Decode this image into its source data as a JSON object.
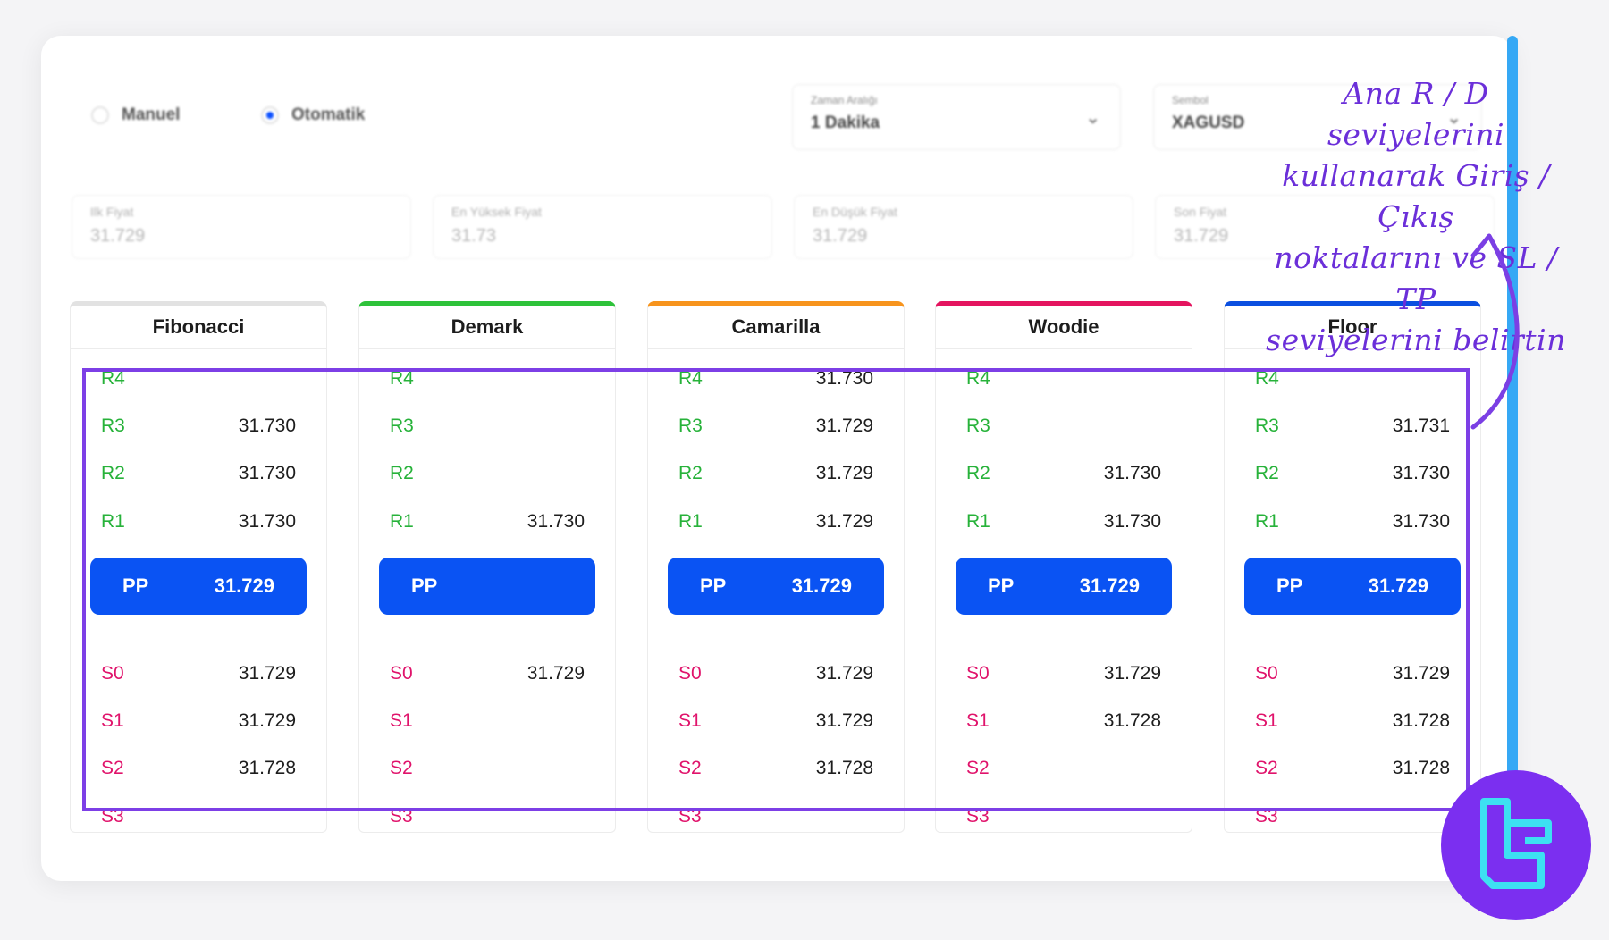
{
  "mode": {
    "manual_label": "Manuel",
    "auto_label": "Otomatik",
    "selected": "Otomatik"
  },
  "timeframe": {
    "label": "Zaman Aralığı",
    "value": "1 Dakika"
  },
  "symbol": {
    "label": "Sembol",
    "value": "XAGUSD"
  },
  "prices": [
    {
      "label": "Ilk Fiyat",
      "value": "31.729"
    },
    {
      "label": "En Yüksek Fiyat",
      "value": "31.73"
    },
    {
      "label": "En Düşük Fiyat",
      "value": "31.729"
    },
    {
      "label": "Son Fiyat",
      "value": "31.729"
    }
  ],
  "columns": [
    {
      "title": "Fibonacci",
      "accent": "#e2e2e2",
      "levels": {
        "R4": "",
        "R3": "31.730",
        "R2": "31.730",
        "R1": "31.730",
        "PP": "31.729",
        "S0": "31.729",
        "S1": "31.729",
        "S2": "31.728",
        "S3": ""
      }
    },
    {
      "title": "Demark",
      "accent": "#2ec23a",
      "levels": {
        "R4": "",
        "R3": "",
        "R2": "",
        "R1": "31.730",
        "PP": "",
        "S0": "31.729",
        "S1": "",
        "S2": "",
        "S3": ""
      }
    },
    {
      "title": "Camarilla",
      "accent": "#f7941d",
      "levels": {
        "R4": "31.730",
        "R3": "31.729",
        "R2": "31.729",
        "R1": "31.729",
        "PP": "31.729",
        "S0": "31.729",
        "S1": "31.729",
        "S2": "31.728",
        "S3": ""
      }
    },
    {
      "title": "Woodie",
      "accent": "#e4145f",
      "levels": {
        "R4": "",
        "R3": "",
        "R2": "31.730",
        "R1": "31.730",
        "PP": "31.729",
        "S0": "31.729",
        "S1": "31.728",
        "S2": "",
        "S3": ""
      }
    },
    {
      "title": "Floor",
      "accent": "#0b4fe0",
      "levels": {
        "R4": "",
        "R3": "31.731",
        "R2": "31.730",
        "R1": "31.730",
        "PP": "31.729",
        "S0": "31.729",
        "S1": "31.728",
        "S2": "31.728",
        "S3": ""
      }
    }
  ],
  "level_names": [
    "R4",
    "R3",
    "R2",
    "R1",
    "PP",
    "S0",
    "S1",
    "S2",
    "S3"
  ],
  "annotation": {
    "line1": "Ana R / D seviyelerini",
    "line2": "kullanarak Giriş / Çıkış",
    "line3": "noktalarını ve SL / TP",
    "line4": "seviyelerini belirtin"
  },
  "colors": {
    "resistance": "#27b23a",
    "support": "#e0136b",
    "pivot_bg": "#0a53f3",
    "annotation": "#6b2fd9",
    "scrollbar": "#35a8f5"
  },
  "logo_icon": "tradingfinder-logo-icon"
}
